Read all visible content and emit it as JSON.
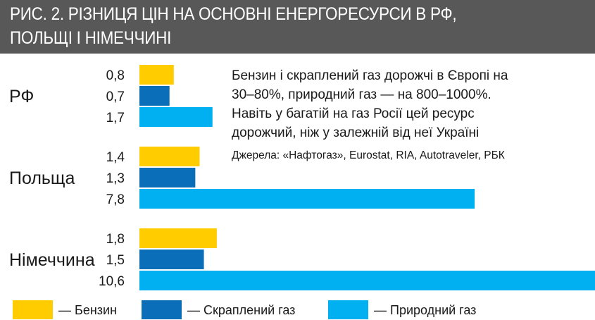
{
  "header": {
    "title_line1": "РИС. 2. РІЗНИЦЯ ЦІН НА ОСНОВНІ ЕНЕРГОРЕСУРСИ В РФ,",
    "title_line2": "ПОЛЬЩІ І НІМЕЧЧИНІ"
  },
  "note": {
    "lines": [
      "Бензин і скраплений газ дорожчі в Європі на",
      "30–80%, природний газ — на 800–1000%.",
      "Навіть у багатій на газ Росії цей ресурс",
      "дорожчий, ніж у залежній від неї Україні"
    ],
    "sources": "Джерела: «Нафтогаз», Eurostat, RIA, Autotraveler, РБК"
  },
  "chart_data": {
    "type": "bar",
    "orientation": "horizontal",
    "categories": [
      "РФ",
      "Польща",
      "Німеччина"
    ],
    "series": [
      {
        "name": "— Бензин",
        "color": "#FFCC00",
        "values": [
          0.8,
          1.4,
          1.8
        ],
        "labels": [
          "0,8",
          "1,4",
          "1,8"
        ]
      },
      {
        "name": "— Скраплений газ",
        "color": "#0A6EB8",
        "values": [
          0.7,
          1.3,
          1.5
        ],
        "labels": [
          "0,7",
          "1,3",
          "1,5"
        ]
      },
      {
        "name": "— Природний газ",
        "color": "#00B0F0",
        "values": [
          1.7,
          7.8,
          10.6
        ],
        "labels": [
          "1,7",
          "7,8",
          "10,6"
        ]
      }
    ],
    "legend_position": "bottom",
    "grid": false,
    "xlim": [
      0,
      10.6
    ]
  }
}
